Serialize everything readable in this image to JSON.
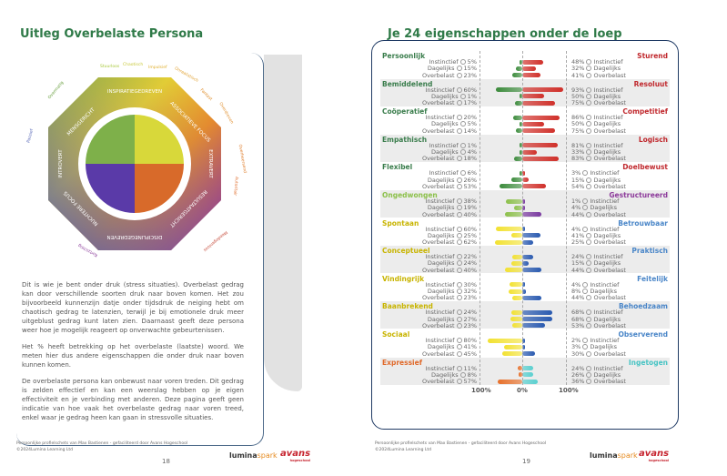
{
  "left_page": {
    "title": "Uitleg Overbelaste Persona",
    "wheel": {
      "segments": [
        "INSPIRATIEGEDREVEN",
        "ASSOCIATIEVE FOCUS",
        "EXTRAVERT",
        "RESULTAATGERICHT",
        "DISCIPLINEGEDREVEN",
        "NUCHTERE FOCUS",
        "INTROVERT",
        "MENSGERICHT"
      ],
      "outer_words": [
        "Stuurloos",
        "Chaotisch",
        "Impulsief",
        "Onrealistisch",
        "Fantast",
        "Overdreven",
        "Overheersend",
        "Autoritair",
        "Meedogenloos",
        "Kortzichtig",
        "Passief",
        "Overmatig"
      ]
    },
    "paragraphs": [
      "Dit is wie je bent onder druk (stress situaties). Overbelast gedrag kan door verschillende soorten druk naar boven komen. Het zou bijvoorbeeld kunnenzijn datje onder tijdsdruk de neiging hebt om chaotisch gedrag te latenzien, terwijl je bij emotionele druk meer uitgeblust gedrag kunt laten zien. Daarnaast geeft deze persona weer hoe je mogelijk reageert op onverwachte gebeurtenissen.",
      "Het % heeft betrekking op het overbelaste (laatste) woord. We meten hier dus andere eigenschappen die onder druk naar boven kunnen komen.",
      "De overbelaste persona kan onbewust naar voren treden. Dit gedrag is zelden effectief en kan een weerslag hebben op je eigen effectiviteit en je verbinding met anderen. Deze pagina geeft geen indicatie van hoe vaak het overbelaste gedrag naar voren treed, enkel waar je gedrag heen kan gaan in stressvolle situaties."
    ],
    "footer": {
      "line1": "Persoonlijke profielschets van Max Bastienen - gefaciliteerd door Avans Hogeschool",
      "line2": "©2024Lumina Learning Ltd",
      "page": "18"
    }
  },
  "right_page": {
    "title": "Je 24 eigenschappen onder de loep",
    "levels": [
      "Instinctief",
      "Dagelijks",
      "Overbelast"
    ],
    "axis": [
      "100%",
      "0%",
      "100%"
    ],
    "rows": [
      {
        "left": "Persoonlijk",
        "right": "Sturend",
        "lc": "#3a7d4c",
        "rc": "#c0282d",
        "l": [
          5,
          15,
          23
        ],
        "r": [
          48,
          32,
          41
        ]
      },
      {
        "left": "Bemiddelend",
        "right": "Resoluut",
        "lc": "#3a7d4c",
        "rc": "#c0282d",
        "l": [
          60,
          1,
          17
        ],
        "r": [
          93,
          50,
          75
        ]
      },
      {
        "left": "Coöperatief",
        "right": "Competitief",
        "lc": "#3a7d4c",
        "rc": "#c0282d",
        "l": [
          20,
          5,
          14
        ],
        "r": [
          86,
          50,
          75
        ]
      },
      {
        "left": "Empathisch",
        "right": "Logisch",
        "lc": "#3a7d4c",
        "rc": "#c0282d",
        "l": [
          1,
          4,
          18
        ],
        "r": [
          81,
          33,
          83
        ]
      },
      {
        "left": "Flexibel",
        "right": "Doelbewust",
        "lc": "#3a7d4c",
        "rc": "#c0282d",
        "l": [
          6,
          26,
          53
        ],
        "r": [
          3,
          15,
          54
        ]
      },
      {
        "left": "Ongedwongen",
        "right": "Gestructureerd",
        "lc": "#8cc04a",
        "rc": "#8c3a9a",
        "l": [
          38,
          19,
          40
        ],
        "r": [
          1,
          4,
          44
        ]
      },
      {
        "left": "Spontaan",
        "right": "Betrouwbaar",
        "lc": "#c8b400",
        "rc": "#4a86c8",
        "l": [
          60,
          25,
          62
        ],
        "r": [
          4,
          41,
          25
        ]
      },
      {
        "left": "Conceptueel",
        "right": "Praktisch",
        "lc": "#c8b400",
        "rc": "#4a86c8",
        "l": [
          22,
          24,
          40
        ],
        "r": [
          24,
          15,
          44
        ]
      },
      {
        "left": "Vindingrijk",
        "right": "Feitelijk",
        "lc": "#c8b400",
        "rc": "#4a86c8",
        "l": [
          30,
          32,
          23
        ],
        "r": [
          4,
          8,
          44
        ]
      },
      {
        "left": "Baanbrekend",
        "right": "Behoedzaam",
        "lc": "#c8b400",
        "rc": "#4a86c8",
        "l": [
          24,
          27,
          23
        ],
        "r": [
          68,
          68,
          53
        ]
      },
      {
        "left": "Sociaal",
        "right": "Observerend",
        "lc": "#c8b400",
        "rc": "#4a86c8",
        "l": [
          80,
          41,
          45
        ],
        "r": [
          2,
          3,
          30
        ]
      },
      {
        "left": "Expressief",
        "right": "Ingetogen",
        "lc": "#e0692a",
        "rc": "#48c4c4",
        "l": [
          11,
          8,
          57
        ],
        "r": [
          24,
          26,
          36
        ]
      }
    ],
    "bar_colors": {
      "left": [
        "#3a8a3a",
        "#3a8a3a",
        "#3a8a3a",
        "#3a8a3a",
        "#3a8a3a",
        "#8cc04a",
        "#f2e130",
        "#f2e130",
        "#f2e130",
        "#f2e130",
        "#f2e130",
        "#e8702a"
      ],
      "right": [
        "#d0302a",
        "#d0302a",
        "#d0302a",
        "#d0302a",
        "#d0302a",
        "#7a3aa0",
        "#2a5ab0",
        "#2a5ab0",
        "#2a5ab0",
        "#2a5ab0",
        "#2a5ab0",
        "#5ad0d0"
      ]
    },
    "footer": {
      "line1": "Persoonlijke profielschets van Max Bastienen - gefaciliteerd door Avans Hogeschool",
      "line2": "©2024Lumina Learning Ltd",
      "page": "19"
    }
  },
  "logos": {
    "lumina": "lumina",
    "spark": "spark",
    "avans": "avans",
    "hogeschool": "hogeschool"
  }
}
